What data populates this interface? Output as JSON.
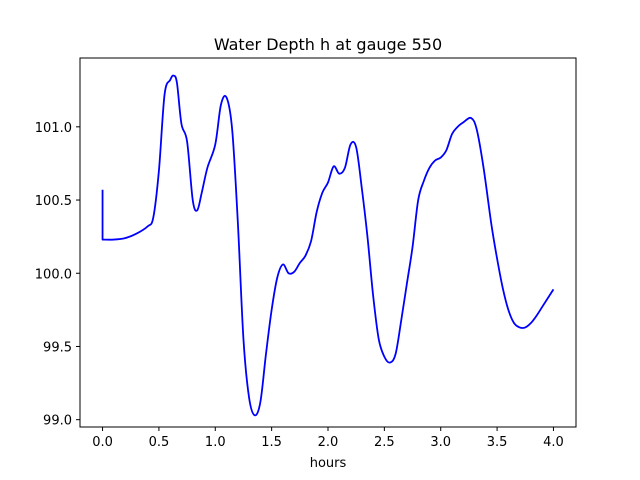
{
  "chart_data": {
    "type": "line",
    "title": "Water Depth h at gauge 550",
    "xlabel": "hours",
    "ylabel": "",
    "xlim": [
      -0.2,
      4.2
    ],
    "ylim": [
      98.95,
      101.47
    ],
    "xticks": [
      0.0,
      0.5,
      1.0,
      1.5,
      2.0,
      2.5,
      3.0,
      3.5,
      4.0
    ],
    "xtick_labels": [
      "0.0",
      "0.5",
      "1.0",
      "1.5",
      "2.0",
      "2.5",
      "3.0",
      "3.5",
      "4.0"
    ],
    "yticks": [
      99.0,
      99.5,
      100.0,
      100.5,
      101.0
    ],
    "ytick_labels": [
      "99.0",
      "99.5",
      "100.0",
      "100.5",
      "101.0"
    ],
    "grid": false,
    "line_color": "#0000ff",
    "series": [
      {
        "x": [
          0.0,
          0.0,
          0.1,
          0.2,
          0.3,
          0.4,
          0.45,
          0.5,
          0.55,
          0.6,
          0.63,
          0.66,
          0.7,
          0.75,
          0.8,
          0.84,
          0.88,
          0.93,
          1.0,
          1.05,
          1.1,
          1.15,
          1.2,
          1.25,
          1.3,
          1.35,
          1.4,
          1.45,
          1.5,
          1.55,
          1.6,
          1.65,
          1.7,
          1.75,
          1.8,
          1.85,
          1.9,
          1.95,
          2.0,
          2.05,
          2.1,
          2.15,
          2.2,
          2.25,
          2.3,
          2.35,
          2.4,
          2.45,
          2.5,
          2.55,
          2.6,
          2.65,
          2.7,
          2.75,
          2.8,
          2.85,
          2.9,
          2.95,
          3.0,
          3.05,
          3.1,
          3.15,
          3.2,
          3.27,
          3.32,
          3.38,
          3.45,
          3.5,
          3.55,
          3.6,
          3.65,
          3.7,
          3.75,
          3.8,
          3.85,
          3.9,
          3.95,
          4.0
        ],
        "y": [
          100.57,
          100.23,
          100.23,
          100.24,
          100.27,
          100.32,
          100.38,
          100.7,
          101.22,
          101.32,
          101.35,
          101.3,
          101.02,
          100.9,
          100.5,
          100.43,
          100.55,
          100.72,
          100.88,
          101.15,
          101.2,
          100.98,
          100.35,
          99.55,
          99.15,
          99.03,
          99.12,
          99.45,
          99.75,
          99.97,
          100.06,
          100.0,
          100.01,
          100.07,
          100.12,
          100.22,
          100.42,
          100.55,
          100.62,
          100.73,
          100.68,
          100.72,
          100.88,
          100.86,
          100.58,
          100.25,
          99.85,
          99.55,
          99.43,
          99.39,
          99.45,
          99.68,
          99.93,
          100.18,
          100.5,
          100.63,
          100.72,
          100.77,
          100.79,
          100.84,
          100.95,
          101.0,
          101.03,
          101.06,
          100.98,
          100.72,
          100.33,
          100.1,
          99.9,
          99.75,
          99.66,
          99.63,
          99.63,
          99.66,
          99.71,
          99.77,
          99.83,
          99.89
        ]
      }
    ]
  }
}
